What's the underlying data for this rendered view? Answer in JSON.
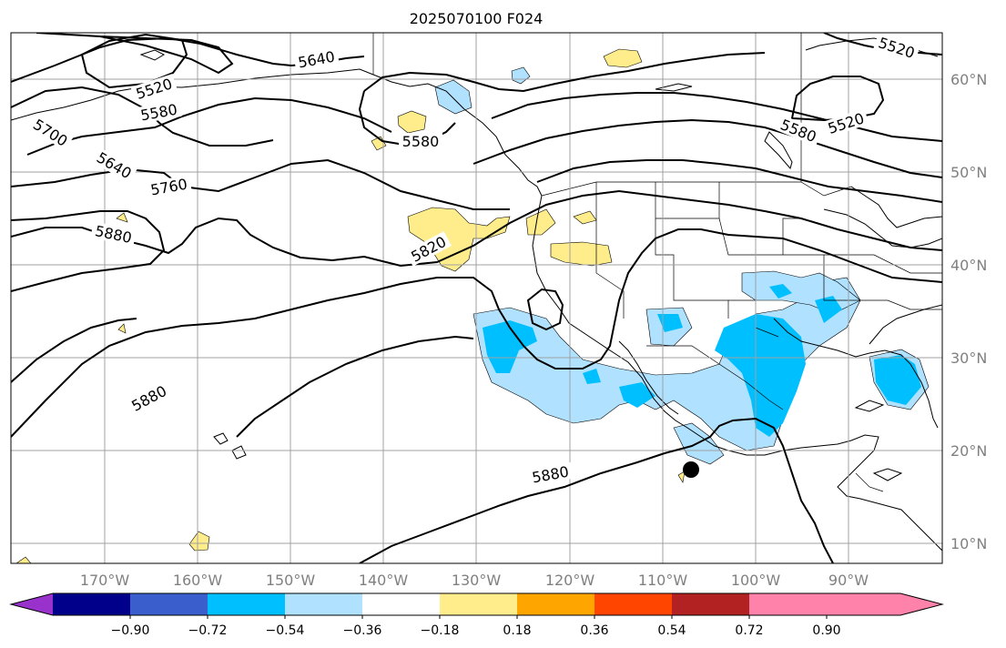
{
  "title": "2025070100 F024",
  "lon_labels": [
    "170°W",
    "160°W",
    "150°W",
    "140°W",
    "130°W",
    "120°W",
    "110°W",
    "100°W",
    "90°W"
  ],
  "lat_labels": [
    "60°N",
    "50°N",
    "40°N",
    "30°N",
    "20°N",
    "10°N"
  ],
  "contour_labels": [
    "5640",
    "5520",
    "5580",
    "5700",
    "5640",
    "5760",
    "5880",
    "5580",
    "5820",
    "5880",
    "5880",
    "5580",
    "5520",
    "5520"
  ],
  "colorbar": {
    "colors": [
      "#9932cc",
      "#00008b",
      "#3a5fcd",
      "#00bfff",
      "#b0e2ff",
      "#ffffff",
      "#ffec8b",
      "#ffa500",
      "#ff4500",
      "#b22222",
      "#ff82ab"
    ],
    "tick_labels": [
      "−0.90",
      "−0.72",
      "−0.54",
      "−0.36",
      "−0.18",
      "0.18",
      "0.36",
      "0.54",
      "0.72",
      "0.90"
    ]
  },
  "marker": {
    "name": "point-marker",
    "color": "#000000"
  }
}
